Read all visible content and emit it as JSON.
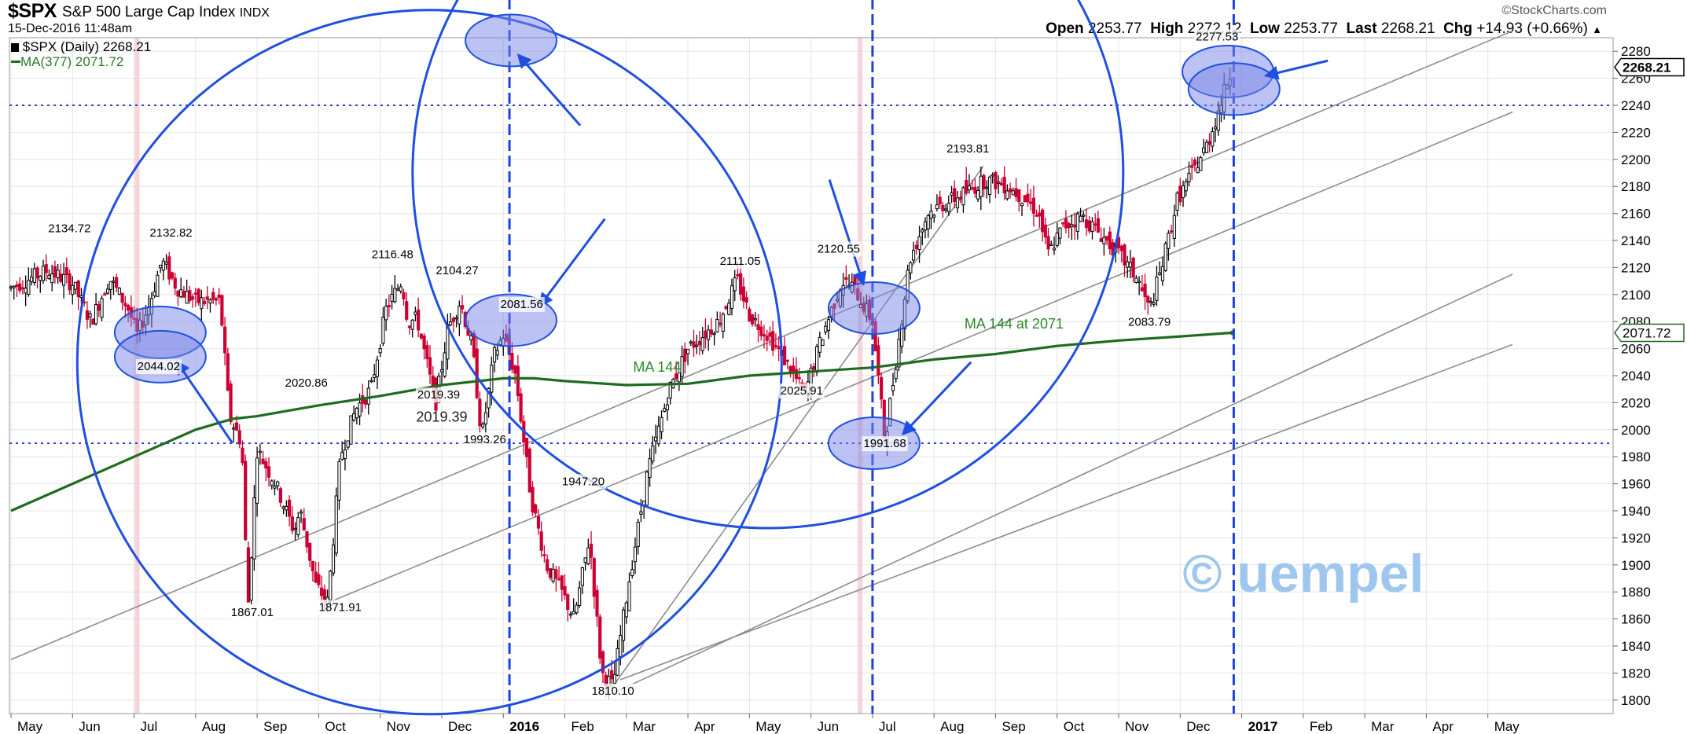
{
  "header": {
    "ticker": "$SPX",
    "name": "S&P 500 Large Cap Index",
    "exchange": "INDX",
    "datetime": "15-Dec-2016 11:48am",
    "brand": "©StockCharts.com",
    "open_label": "Open",
    "open": "2253.77",
    "high_label": "High",
    "high": "2272.12",
    "low_label": "Low",
    "low": "2253.77",
    "last_label": "Last",
    "last": "2268.21",
    "chg_label": "Chg",
    "chg": "+14.93 (+0.66%)",
    "legend_price": "$SPX (Daily) 2268.21",
    "legend_ma": "MA(377) 2071.72"
  },
  "colors": {
    "up": "#000000",
    "down": "#cc0033",
    "ma": "#1f6b1f",
    "annotation": "#1f4fe0",
    "highlight_fill": "#7a86e8",
    "trendline": "#8c8c8c",
    "grid": "#e4e4e4",
    "dotted_level": "#2a3fd6",
    "watermark": "#9ec6ee"
  },
  "chart_data": {
    "type": "line",
    "subtype": "candlestick",
    "ylim": [
      1790,
      2290
    ],
    "y_ticks": [
      1800,
      1820,
      1840,
      1860,
      1880,
      1900,
      1920,
      1940,
      1960,
      1980,
      2000,
      2020,
      2040,
      2060,
      2080,
      2100,
      2120,
      2140,
      2160,
      2180,
      2200,
      2220,
      2240,
      2260,
      2280
    ],
    "x_ticks": [
      "May",
      "Jun",
      "Jul",
      "Aug",
      "Sep",
      "Oct",
      "Nov",
      "Dec",
      "2016",
      "Feb",
      "Mar",
      "Apr",
      "May",
      "Jun",
      "Jul",
      "Aug",
      "Sep",
      "Oct",
      "Nov",
      "Dec",
      "2017",
      "Feb",
      "Mar",
      "Apr",
      "May"
    ],
    "x_tick_bold": [
      false,
      false,
      false,
      false,
      false,
      false,
      false,
      false,
      true,
      false,
      false,
      false,
      false,
      false,
      false,
      false,
      false,
      false,
      false,
      false,
      true,
      false,
      false,
      false,
      false
    ],
    "x_range": [
      0,
      24.4
    ],
    "grid": true,
    "price_key_points": [
      [
        0.0,
        2105
      ],
      [
        0.6,
        2118
      ],
      [
        1.0,
        2108
      ],
      [
        1.3,
        2080
      ],
      [
        1.6,
        2112
      ],
      [
        1.9,
        2090
      ],
      [
        2.05,
        2070
      ],
      [
        2.25,
        2093
      ],
      [
        2.45,
        2125
      ],
      [
        2.7,
        2105
      ],
      [
        3.0,
        2095
      ],
      [
        3.4,
        2095
      ],
      [
        3.55,
        2010
      ],
      [
        3.75,
        1990
      ],
      [
        3.85,
        1867
      ],
      [
        4.0,
        1985
      ],
      [
        4.3,
        1960
      ],
      [
        4.6,
        1925
      ],
      [
        4.7,
        1940
      ],
      [
        4.95,
        1885
      ],
      [
        5.15,
        1872
      ],
      [
        5.35,
        1980
      ],
      [
        5.6,
        2015
      ],
      [
        5.85,
        2030
      ],
      [
        6.1,
        2090
      ],
      [
        6.35,
        2110
      ],
      [
        6.45,
        2080
      ],
      [
        6.6,
        2082
      ],
      [
        6.9,
        2019
      ],
      [
        7.1,
        2075
      ],
      [
        7.3,
        2095
      ],
      [
        7.5,
        2060
      ],
      [
        7.65,
        1994
      ],
      [
        7.85,
        2055
      ],
      [
        8.0,
        2070
      ],
      [
        8.2,
        2040
      ],
      [
        8.45,
        1950
      ],
      [
        8.7,
        1900
      ],
      [
        8.95,
        1880
      ],
      [
        9.15,
        1860
      ],
      [
        9.4,
        1920
      ],
      [
        9.6,
        1820
      ],
      [
        9.78,
        1810
      ],
      [
        10.05,
        1890
      ],
      [
        10.35,
        1970
      ],
      [
        10.7,
        2030
      ],
      [
        11.0,
        2060
      ],
      [
        11.5,
        2080
      ],
      [
        11.8,
        2111
      ],
      [
        12.0,
        2085
      ],
      [
        12.3,
        2070
      ],
      [
        12.6,
        2050
      ],
      [
        12.9,
        2026
      ],
      [
        13.15,
        2065
      ],
      [
        13.5,
        2110
      ],
      [
        13.7,
        2105
      ],
      [
        14.0,
        2080
      ],
      [
        14.2,
        1992
      ],
      [
        14.35,
        2040
      ],
      [
        14.6,
        2125
      ],
      [
        14.9,
        2160
      ],
      [
        15.2,
        2168
      ],
      [
        15.5,
        2175
      ],
      [
        15.85,
        2185
      ],
      [
        16.2,
        2180
      ],
      [
        16.5,
        2170
      ],
      [
        16.7,
        2160
      ],
      [
        16.85,
        2130
      ],
      [
        17.1,
        2150
      ],
      [
        17.4,
        2158
      ],
      [
        17.7,
        2145
      ],
      [
        18.0,
        2130
      ],
      [
        18.3,
        2112
      ],
      [
        18.5,
        2088
      ],
      [
        18.7,
        2120
      ],
      [
        18.95,
        2170
      ],
      [
        19.2,
        2190
      ],
      [
        19.45,
        2212
      ],
      [
        19.65,
        2240
      ],
      [
        19.78,
        2260
      ],
      [
        19.85,
        2268
      ]
    ],
    "ma_key_points": [
      [
        0.0,
        1940
      ],
      [
        1.0,
        1960
      ],
      [
        2.0,
        1980
      ],
      [
        3.0,
        2000
      ],
      [
        3.6,
        2008
      ],
      [
        4.0,
        2010
      ],
      [
        5.0,
        2018
      ],
      [
        6.0,
        2025
      ],
      [
        7.0,
        2033
      ],
      [
        8.0,
        2038
      ],
      [
        8.5,
        2038
      ],
      [
        9.0,
        2036
      ],
      [
        10.0,
        2033
      ],
      [
        11.0,
        2034
      ],
      [
        12.0,
        2040
      ],
      [
        13.0,
        2043
      ],
      [
        14.0,
        2046
      ],
      [
        15.0,
        2052
      ],
      [
        16.0,
        2056
      ],
      [
        17.0,
        2062
      ],
      [
        18.0,
        2066
      ],
      [
        19.0,
        2069
      ],
      [
        19.85,
        2071.72
      ]
    ],
    "data_labels": [
      {
        "text": "2134.72",
        "x": 0.95,
        "y": 2146
      },
      {
        "text": "2132.82",
        "x": 2.6,
        "y": 2143
      },
      {
        "text": "2044.02",
        "x": 2.4,
        "y": 2044
      },
      {
        "text": "2020.86",
        "x": 4.8,
        "y": 2032
      },
      {
        "text": "1867.01",
        "x": 3.92,
        "y": 1862
      },
      {
        "text": "1871.91",
        "x": 5.35,
        "y": 1866
      },
      {
        "text": "2116.48",
        "x": 6.2,
        "y": 2127
      },
      {
        "text": "2104.27",
        "x": 7.25,
        "y": 2115
      },
      {
        "text": "2019.39",
        "x": 6.95,
        "y": 2023
      },
      {
        "text": "1993.26",
        "x": 7.7,
        "y": 1990
      },
      {
        "text": "2081.56",
        "x": 8.3,
        "y": 2090
      },
      {
        "text": "1947.20",
        "x": 9.3,
        "y": 1959
      },
      {
        "text": "1810.10",
        "x": 9.78,
        "y": 1804
      },
      {
        "text": "2111.05",
        "x": 11.85,
        "y": 2122
      },
      {
        "text": "2025.91",
        "x": 12.85,
        "y": 2026
      },
      {
        "text": "2120.55",
        "x": 13.45,
        "y": 2131
      },
      {
        "text": "1991.68",
        "x": 14.2,
        "y": 1987
      },
      {
        "text": "2193.81",
        "x": 15.55,
        "y": 2205
      },
      {
        "text": "2083.79",
        "x": 18.5,
        "y": 2077
      },
      {
        "text": "2277.53",
        "x": 19.6,
        "y": 2288
      }
    ],
    "annotations": [
      "2019.39",
      "MA 144",
      "MA 144 at 2071"
    ],
    "right_price_labels": [
      "2268.21",
      "2071.72"
    ],
    "watermark": "© uempel",
    "horizontal_levels": [
      2240,
      1990
    ],
    "vertical_markers": [
      8.1,
      14.0,
      19.87
    ],
    "shaded_months": [
      2.05,
      13.8
    ]
  }
}
